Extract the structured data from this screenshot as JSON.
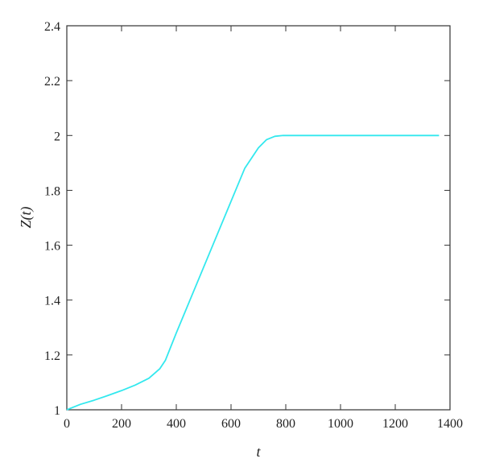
{
  "chart_data": {
    "type": "line",
    "title": "",
    "xlabel": "t",
    "ylabel": "Z(t)",
    "xlim": [
      0,
      1400
    ],
    "ylim": [
      1,
      2.4
    ],
    "xticks": [
      0,
      200,
      400,
      600,
      800,
      1000,
      1200,
      1400
    ],
    "yticks": [
      1,
      1.2,
      1.4,
      1.6,
      1.8,
      2,
      2.2,
      2.4
    ],
    "xtick_labels": [
      "0",
      "200",
      "400",
      "600",
      "800",
      "1000",
      "1200",
      "1400"
    ],
    "ytick_labels": [
      "1",
      "1.2",
      "1.4",
      "1.6",
      "1.8",
      "2",
      "2.2",
      "2.4"
    ],
    "grid": false,
    "legend": "none",
    "series": [
      {
        "color": "#33e8ee",
        "x": [
          0,
          50,
          100,
          150,
          200,
          250,
          300,
          340,
          360,
          380,
          400,
          450,
          500,
          550,
          600,
          650,
          700,
          730,
          760,
          790,
          820,
          850,
          900,
          1000,
          1100,
          1200,
          1300,
          1360
        ],
        "y": [
          1.0,
          1.02,
          1.035,
          1.052,
          1.07,
          1.09,
          1.115,
          1.15,
          1.18,
          1.23,
          1.28,
          1.4,
          1.52,
          1.64,
          1.76,
          1.88,
          1.955,
          1.985,
          1.997,
          2.0,
          2.0,
          2.0,
          2.0,
          2.0,
          2.0,
          2.0,
          2.0,
          2.0
        ]
      }
    ]
  }
}
